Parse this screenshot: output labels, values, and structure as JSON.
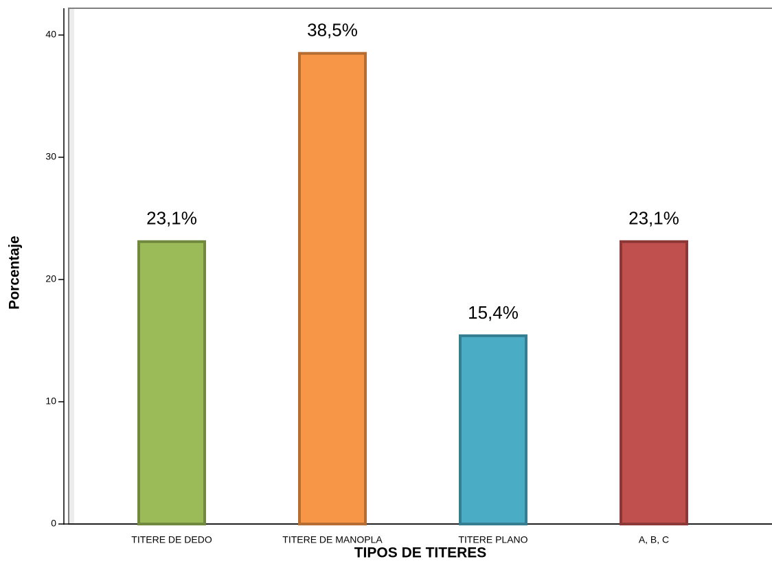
{
  "chart_data": {
    "type": "bar",
    "x_label": "TIPOS DE TITERES",
    "y_label": "Porcentaje",
    "categories": [
      "TITERE DE DEDO",
      "TITERE DE MANOPLA",
      "TITERE PLANO",
      "A, B, C"
    ],
    "values": [
      23.1,
      38.5,
      15.4,
      23.1
    ],
    "value_labels": [
      "23,1%",
      "38,5%",
      "15,4%",
      "23,1%"
    ],
    "colors": [
      "#9bbb59",
      "#f79646",
      "#4bacc6",
      "#c0504d"
    ],
    "edge_colors": [
      "#71893f",
      "#b66d31",
      "#357d91",
      "#8c3836"
    ],
    "ylim": [
      0,
      40
    ],
    "yticks": [
      0,
      10,
      20,
      30,
      40
    ]
  }
}
